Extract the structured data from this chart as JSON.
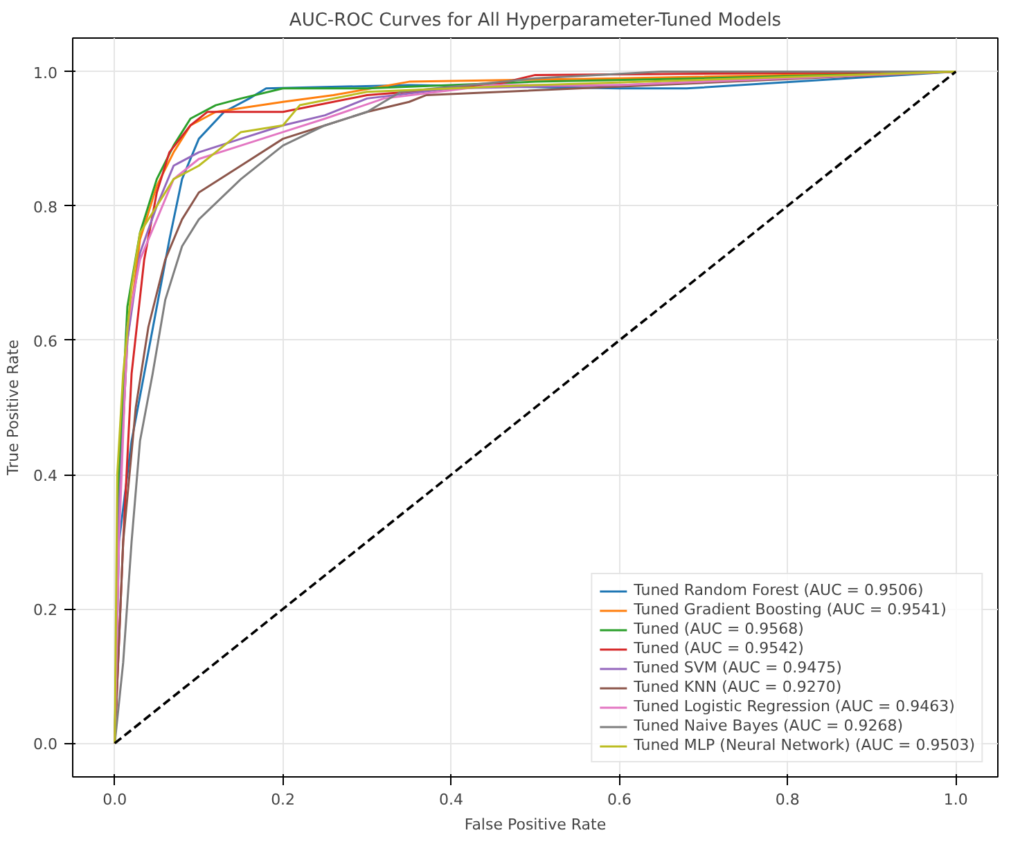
{
  "chart_data": {
    "type": "line",
    "title": "AUC-ROC Curves for All Hyperparameter-Tuned Models",
    "xlabel": "False Positive Rate",
    "ylabel": "True Positive Rate",
    "xlim": [
      -0.05,
      1.05
    ],
    "ylim": [
      -0.05,
      1.05
    ],
    "xticks": [
      {
        "value": 0,
        "label": "0.0"
      },
      0.2,
      0.4,
      0.6,
      0.8,
      {
        "value": 1,
        "label": "1.0"
      }
    ],
    "yticks": [
      {
        "value": 0,
        "label": "0.0"
      },
      0.2,
      0.4,
      0.6,
      0.8,
      {
        "value": 1,
        "label": "1.0"
      }
    ],
    "grid": true,
    "legend": "bottom right",
    "line_style": "solid",
    "series": [
      {
        "name": "Tuned Random Forest (AUC = 0.9506)",
        "color": "#1f77b4",
        "x": [
          0,
          0.005,
          0.02,
          0.035,
          0.05,
          0.065,
          0.08,
          0.1,
          0.13,
          0.16,
          0.18,
          0.35,
          0.6,
          0.68,
          1
        ],
        "values": [
          0,
          0.3,
          0.45,
          0.55,
          0.65,
          0.75,
          0.84,
          0.9,
          0.94,
          0.96,
          0.975,
          0.98,
          0.975,
          0.975,
          1
        ]
      },
      {
        "name": "Tuned Gradient Boosting (AUC = 0.9541)",
        "color": "#ff7f0e",
        "x": [
          0,
          0.005,
          0.015,
          0.03,
          0.05,
          0.07,
          0.09,
          0.12,
          0.2,
          0.26,
          0.35,
          0.6,
          1
        ],
        "values": [
          0,
          0.35,
          0.6,
          0.75,
          0.83,
          0.88,
          0.92,
          0.94,
          0.955,
          0.965,
          0.985,
          0.99,
          1
        ]
      },
      {
        "name": "Tuned (AUC = 0.9568)",
        "color": "#2ca02c",
        "x": [
          0,
          0.005,
          0.015,
          0.03,
          0.05,
          0.07,
          0.09,
          0.12,
          0.15,
          0.2,
          0.3,
          0.5,
          0.7,
          1
        ],
        "values": [
          0,
          0.4,
          0.65,
          0.76,
          0.84,
          0.89,
          0.93,
          0.95,
          0.96,
          0.975,
          0.975,
          0.985,
          0.99,
          1
        ]
      },
      {
        "name": "Tuned (AUC = 0.9542)",
        "color": "#d62728",
        "x": [
          0,
          0.01,
          0.02,
          0.035,
          0.05,
          0.065,
          0.09,
          0.11,
          0.2,
          0.3,
          0.45,
          0.5,
          1
        ],
        "values": [
          0,
          0.3,
          0.55,
          0.72,
          0.82,
          0.88,
          0.92,
          0.94,
          0.94,
          0.965,
          0.98,
          0.995,
          1
        ]
      },
      {
        "name": "Tuned SVM (AUC = 0.9475)",
        "color": "#9467bd",
        "x": [
          0,
          0.005,
          0.015,
          0.03,
          0.05,
          0.07,
          0.1,
          0.15,
          0.2,
          0.25,
          0.3,
          0.4,
          0.6,
          1
        ],
        "values": [
          0,
          0.35,
          0.6,
          0.73,
          0.8,
          0.86,
          0.88,
          0.9,
          0.92,
          0.935,
          0.96,
          0.975,
          0.98,
          1
        ]
      },
      {
        "name": "Tuned KNN (AUC = 0.9270)",
        "color": "#8c564b",
        "x": [
          0,
          0.01,
          0.025,
          0.04,
          0.06,
          0.08,
          0.1,
          0.15,
          0.2,
          0.25,
          0.3,
          0.35,
          0.37,
          1
        ],
        "values": [
          0,
          0.3,
          0.5,
          0.62,
          0.72,
          0.78,
          0.82,
          0.86,
          0.9,
          0.92,
          0.94,
          0.955,
          0.965,
          1
        ]
      },
      {
        "name": "Tuned Logistic Regression (AUC = 0.9463)",
        "color": "#e377c2",
        "x": [
          0,
          0.005,
          0.015,
          0.03,
          0.05,
          0.07,
          0.1,
          0.15,
          0.2,
          0.25,
          0.32,
          0.45,
          0.6,
          1
        ],
        "values": [
          0,
          0.3,
          0.62,
          0.72,
          0.78,
          0.84,
          0.87,
          0.89,
          0.91,
          0.93,
          0.96,
          0.98,
          0.98,
          1
        ]
      },
      {
        "name": "Tuned Naive Bayes (AUC = 0.9268)",
        "color": "#7f7f7f",
        "x": [
          0,
          0.01,
          0.02,
          0.03,
          0.045,
          0.06,
          0.08,
          0.1,
          0.15,
          0.2,
          0.25,
          0.3,
          0.34,
          0.5,
          0.65,
          1
        ],
        "values": [
          0,
          0.12,
          0.3,
          0.45,
          0.55,
          0.66,
          0.74,
          0.78,
          0.84,
          0.89,
          0.92,
          0.94,
          0.97,
          0.99,
          1,
          1
        ]
      },
      {
        "name": "Tuned MLP (Neural Network) (AUC = 0.9503)",
        "color": "#bcbd22",
        "x": [
          0,
          0.003,
          0.01,
          0.02,
          0.03,
          0.05,
          0.07,
          0.1,
          0.13,
          0.15,
          0.2,
          0.22,
          0.3,
          0.5,
          1
        ],
        "values": [
          0,
          0.4,
          0.55,
          0.68,
          0.76,
          0.8,
          0.84,
          0.86,
          0.89,
          0.91,
          0.92,
          0.95,
          0.97,
          0.98,
          1
        ]
      },
      {
        "color": "#000000",
        "line_style": "dashed",
        "x": [
          0,
          1
        ],
        "values": [
          0,
          1
        ]
      }
    ]
  }
}
